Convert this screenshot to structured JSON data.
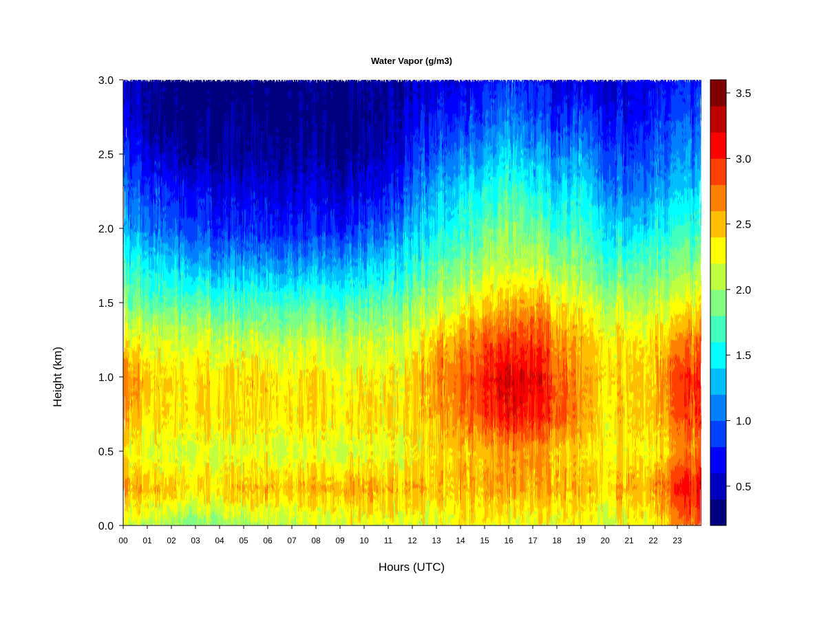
{
  "chart_data": {
    "type": "heatmap",
    "title": "Water Vapor (g/m3)",
    "xlabel": "Hours (UTC)",
    "ylabel": "Height (km)",
    "xlim": [
      0,
      24
    ],
    "ylim": [
      0,
      3.0
    ],
    "x_ticks": [
      "00",
      "01",
      "02",
      "03",
      "04",
      "05",
      "06",
      "07",
      "08",
      "09",
      "10",
      "11",
      "12",
      "13",
      "14",
      "15",
      "16",
      "17",
      "18",
      "19",
      "20",
      "21",
      "22",
      "23"
    ],
    "y_ticks": [
      "0.0",
      "0.5",
      "1.0",
      "1.5",
      "2.0",
      "2.5",
      "3.0"
    ],
    "colorbar": {
      "min": 0.2,
      "max": 3.6,
      "step": 0.2,
      "tick_labels": [
        "0.5",
        "1.0",
        "1.5",
        "2.0",
        "2.5",
        "3.0",
        "3.5"
      ],
      "colors": [
        "#00007F",
        "#0000BF",
        "#0000FF",
        "#0040FF",
        "#0080FF",
        "#00BFFF",
        "#00FFFF",
        "#40FFBF",
        "#80FF80",
        "#BFFF40",
        "#FFFF00",
        "#FFBF00",
        "#FF8000",
        "#FF4000",
        "#FF0000",
        "#BF0000",
        "#7F0000"
      ]
    },
    "hours": [
      0,
      1,
      2,
      3,
      4,
      5,
      6,
      7,
      8,
      9,
      10,
      11,
      12,
      13,
      14,
      15,
      16,
      17,
      18,
      19,
      20,
      21,
      22,
      23,
      24
    ],
    "heights_km": [
      0.0,
      0.25,
      0.5,
      0.75,
      1.0,
      1.25,
      1.5,
      1.75,
      2.0,
      2.25,
      2.5,
      2.75,
      3.0
    ],
    "water_vapor_gm3": [
      [
        2.1,
        2.6,
        2.3,
        2.6,
        2.7,
        2.3,
        1.9,
        1.6,
        1.2,
        1.0,
        0.8,
        0.6,
        0.5
      ],
      [
        2.1,
        2.5,
        2.2,
        2.4,
        2.5,
        2.2,
        1.8,
        1.5,
        1.1,
        0.9,
        0.6,
        0.4,
        0.4
      ],
      [
        2.0,
        2.5,
        2.2,
        2.4,
        2.4,
        2.2,
        1.8,
        1.4,
        1.0,
        0.8,
        0.5,
        0.3,
        0.3
      ],
      [
        1.9,
        2.4,
        2.2,
        2.4,
        2.4,
        2.2,
        1.8,
        1.3,
        0.9,
        0.7,
        0.4,
        0.3,
        0.2
      ],
      [
        2.0,
        2.4,
        2.2,
        2.4,
        2.4,
        2.1,
        1.7,
        1.2,
        0.8,
        0.6,
        0.4,
        0.3,
        0.2
      ],
      [
        2.0,
        2.5,
        2.2,
        2.4,
        2.4,
        2.1,
        1.7,
        1.2,
        0.8,
        0.6,
        0.4,
        0.3,
        0.2
      ],
      [
        2.1,
        2.5,
        2.2,
        2.4,
        2.4,
        2.1,
        1.7,
        1.2,
        0.8,
        0.6,
        0.4,
        0.3,
        0.2
      ],
      [
        2.1,
        2.5,
        2.2,
        2.4,
        2.3,
        2.1,
        1.7,
        1.2,
        0.8,
        0.6,
        0.4,
        0.3,
        0.3
      ],
      [
        2.1,
        2.5,
        2.2,
        2.4,
        2.4,
        2.1,
        1.7,
        1.2,
        0.8,
        0.6,
        0.4,
        0.3,
        0.3
      ],
      [
        2.2,
        2.6,
        2.2,
        2.4,
        2.3,
        2.1,
        1.7,
        1.3,
        0.8,
        0.6,
        0.4,
        0.3,
        0.3
      ],
      [
        2.2,
        2.6,
        2.2,
        2.4,
        2.3,
        2.1,
        1.7,
        1.3,
        0.9,
        0.6,
        0.4,
        0.3,
        0.3
      ],
      [
        2.2,
        2.5,
        2.2,
        2.4,
        2.3,
        2.1,
        1.8,
        1.4,
        1.0,
        0.7,
        0.5,
        0.4,
        0.4
      ],
      [
        2.2,
        2.5,
        2.3,
        2.4,
        2.4,
        2.2,
        1.9,
        1.6,
        1.3,
        1.0,
        0.8,
        0.6,
        0.5
      ],
      [
        2.2,
        2.5,
        2.4,
        2.6,
        2.7,
        2.5,
        2.1,
        1.8,
        1.5,
        1.3,
        1.0,
        0.8,
        0.6
      ],
      [
        2.3,
        2.5,
        2.5,
        2.7,
        2.8,
        2.6,
        2.2,
        1.9,
        1.6,
        1.4,
        1.1,
        0.8,
        0.6
      ],
      [
        2.3,
        2.5,
        2.5,
        2.9,
        3.0,
        2.8,
        2.4,
        2.0,
        1.8,
        1.5,
        1.2,
        0.9,
        0.7
      ],
      [
        2.2,
        2.6,
        2.6,
        3.1,
        3.2,
        2.9,
        2.5,
        2.1,
        1.9,
        1.7,
        1.4,
        1.1,
        0.8
      ],
      [
        2.2,
        2.5,
        2.6,
        3.0,
        3.1,
        2.9,
        2.5,
        2.1,
        1.8,
        1.5,
        1.2,
        0.9,
        0.7
      ],
      [
        2.3,
        2.6,
        2.5,
        2.9,
        2.9,
        2.7,
        2.4,
        2.0,
        1.7,
        1.4,
        1.1,
        0.8,
        0.6
      ],
      [
        2.3,
        2.5,
        2.4,
        2.6,
        2.6,
        2.5,
        2.2,
        1.9,
        1.7,
        1.5,
        1.2,
        0.9,
        0.6
      ],
      [
        2.2,
        2.5,
        2.4,
        2.4,
        2.5,
        2.4,
        2.1,
        1.8,
        1.5,
        1.2,
        1.0,
        0.8,
        0.6
      ],
      [
        2.2,
        2.5,
        2.3,
        2.4,
        2.4,
        2.3,
        2.0,
        1.7,
        1.3,
        1.0,
        0.8,
        0.6,
        0.6
      ],
      [
        2.3,
        2.6,
        2.3,
        2.5,
        2.5,
        2.4,
        2.1,
        1.8,
        1.5,
        1.2,
        1.0,
        0.8,
        0.7
      ],
      [
        2.6,
        3.0,
        2.6,
        2.8,
        2.9,
        2.6,
        2.2,
        1.9,
        1.6,
        1.3,
        1.1,
        0.9,
        0.7
      ],
      [
        2.8,
        3.1,
        2.7,
        2.9,
        3.0,
        2.7,
        2.3,
        1.9,
        1.6,
        1.3,
        1.1,
        0.9,
        0.8
      ]
    ]
  }
}
